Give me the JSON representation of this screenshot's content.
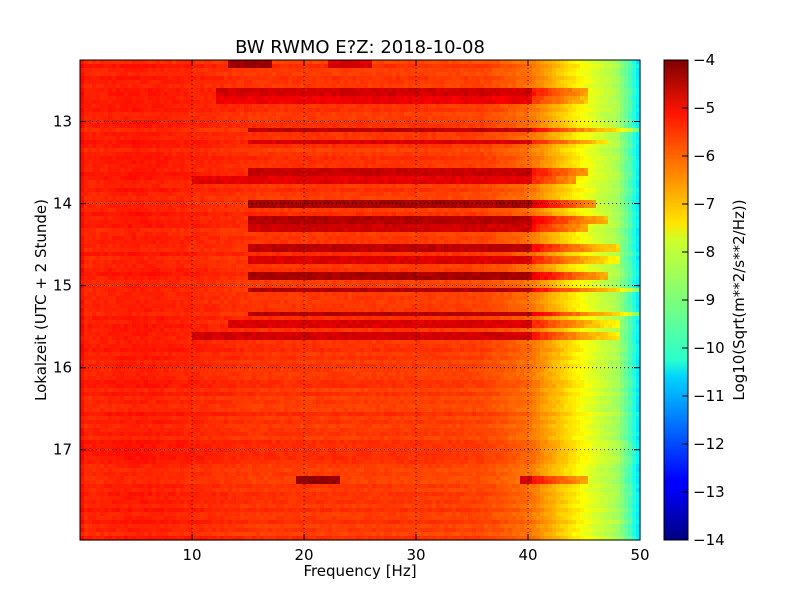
{
  "chart_data": {
    "type": "heatmap",
    "title": "BW RWMO E?Z: 2018-10-08",
    "xlabel": "Frequency [Hz]",
    "ylabel": "Lokalzeit (UTC + 2 Stunde)",
    "xlim": [
      0,
      50
    ],
    "ylim": [
      12.25,
      18.1
    ],
    "y_inverted": true,
    "grid": true,
    "x_ticks": [
      10,
      20,
      30,
      40,
      50
    ],
    "y_ticks": [
      13,
      14,
      15,
      16,
      17
    ],
    "colormap": "jet",
    "colorbar": {
      "label": "Log10(Sqrt(m**2/s**2/Hz))",
      "range": [
        -14,
        -4
      ],
      "ticks": [
        -4,
        -5,
        -6,
        -7,
        -8,
        -9,
        -10,
        -11,
        -12,
        -13,
        -14
      ]
    },
    "background_level": -5.8,
    "frequency_profile": [
      {
        "hz": 0,
        "level": -5.2
      },
      {
        "hz": 0.5,
        "level": -5.6
      },
      {
        "hz": 5,
        "level": -5.5
      },
      {
        "hz": 10,
        "level": -5.6
      },
      {
        "hz": 16,
        "level": -5.75
      },
      {
        "hz": 30,
        "level": -5.8
      },
      {
        "hz": 36,
        "level": -5.9
      },
      {
        "hz": 40,
        "level": -6.3
      },
      {
        "hz": 42,
        "level": -6.9
      },
      {
        "hz": 44,
        "level": -7.5
      },
      {
        "hz": 46,
        "level": -8.1
      },
      {
        "hz": 48,
        "level": -8.6
      },
      {
        "hz": 49.3,
        "level": -9.6
      },
      {
        "hz": 50,
        "level": -10.6
      }
    ],
    "bands": [
      {
        "t": 12.3,
        "f_start": 13,
        "f_end": 17,
        "level": -4.3
      },
      {
        "t": 12.3,
        "f_start": 22,
        "f_end": 26,
        "level": -4.9
      },
      {
        "t": 12.65,
        "f_start": 12,
        "f_end": 45,
        "level": -4.8
      },
      {
        "t": 12.75,
        "f_start": 12,
        "f_end": 45,
        "level": -5.1
      },
      {
        "t": 13.1,
        "f_start": 15,
        "f_end": 50,
        "level": -4.6
      },
      {
        "t": 13.25,
        "f_start": 15,
        "f_end": 47,
        "level": -4.9
      },
      {
        "t": 13.6,
        "f_start": 15,
        "f_end": 45,
        "level": -4.7
      },
      {
        "t": 13.7,
        "f_start": 10,
        "f_end": 44,
        "level": -5.0
      },
      {
        "t": 14.0,
        "f_start": 15,
        "f_end": 46,
        "level": -4.4
      },
      {
        "t": 14.2,
        "f_start": 15,
        "f_end": 47,
        "level": -4.5
      },
      {
        "t": 14.3,
        "f_start": 15,
        "f_end": 45,
        "level": -4.8
      },
      {
        "t": 14.55,
        "f_start": 15,
        "f_end": 48,
        "level": -4.6
      },
      {
        "t": 14.7,
        "f_start": 15,
        "f_end": 48,
        "level": -4.9
      },
      {
        "t": 14.9,
        "f_start": 15,
        "f_end": 47,
        "level": -4.4
      },
      {
        "t": 15.05,
        "f_start": 15,
        "f_end": 50,
        "level": -4.5
      },
      {
        "t": 15.35,
        "f_start": 15,
        "f_end": 50,
        "level": -4.5
      },
      {
        "t": 15.45,
        "f_start": 13,
        "f_end": 48,
        "level": -4.9
      },
      {
        "t": 15.6,
        "f_start": 10,
        "f_end": 48,
        "level": -4.8
      },
      {
        "t": 17.35,
        "f_start": 19,
        "f_end": 23,
        "level": -4.2
      },
      {
        "t": 17.35,
        "f_start": 39,
        "f_end": 45,
        "level": -4.8
      }
    ]
  }
}
